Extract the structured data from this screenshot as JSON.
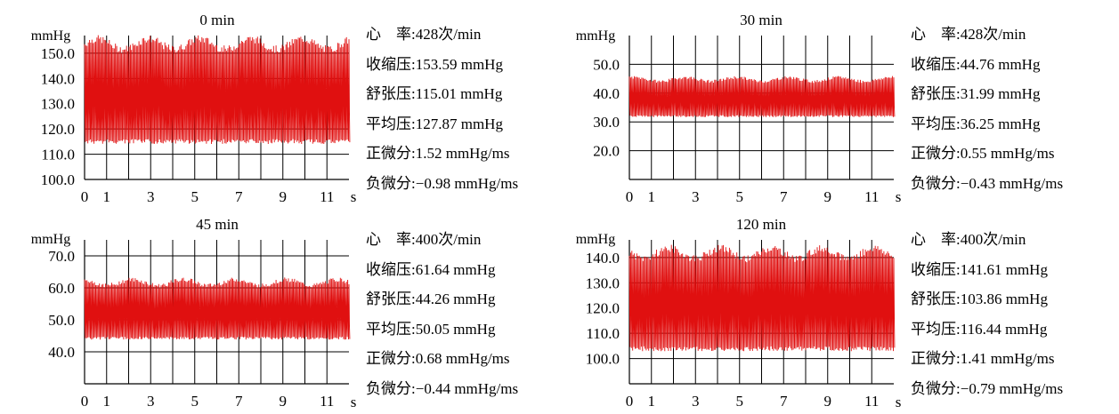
{
  "chart_data": [
    {
      "type": "line",
      "title": "0 min",
      "ylabel": "mmHg",
      "xlabel": "s",
      "yticks": [
        "100.0",
        "110.0",
        "120.0",
        "130.0",
        "140.0",
        "150.0"
      ],
      "ytick_values": [
        100,
        110,
        120,
        130,
        140,
        150
      ],
      "ylim": [
        100,
        157
      ],
      "xticks": [
        "0",
        "1",
        "3",
        "5",
        "7",
        "9",
        "11"
      ],
      "xtick_values": [
        0,
        1,
        3,
        5,
        7,
        9,
        11
      ],
      "xlim": [
        0,
        12
      ],
      "grid": true,
      "series": [
        {
          "systolic": 153.59,
          "diastolic": 115.01,
          "mean": 127.87,
          "heart_rate": 428,
          "color": "#e01010"
        }
      ],
      "stats": [
        {
          "label": "心　率:",
          "value": "428次/min"
        },
        {
          "label": "收缩压:",
          "value": "153.59 mmHg"
        },
        {
          "label": "舒张压:",
          "value": "115.01 mmHg"
        },
        {
          "label": "平均压:",
          "value": "127.87 mmHg"
        },
        {
          "label": "正微分:",
          "value": "1.52 mmHg/ms"
        },
        {
          "label": "负微分:",
          "value": "−0.98 mmHg/ms"
        }
      ]
    },
    {
      "type": "line",
      "title": "30 min",
      "ylabel": "mmHg",
      "xlabel": "s",
      "yticks": [
        "20.0",
        "30.0",
        "40.0",
        "50.0"
      ],
      "ytick_values": [
        20,
        30,
        40,
        50
      ],
      "ylim": [
        10,
        60
      ],
      "xticks": [
        "0",
        "1",
        "3",
        "5",
        "7",
        "9",
        "11"
      ],
      "xtick_values": [
        0,
        1,
        3,
        5,
        7,
        9,
        11
      ],
      "xlim": [
        0,
        12
      ],
      "grid": true,
      "series": [
        {
          "systolic": 44.76,
          "diastolic": 31.99,
          "mean": 36.25,
          "heart_rate": 428,
          "color": "#e01010"
        }
      ],
      "stats": [
        {
          "label": "心　率:",
          "value": "428次/min"
        },
        {
          "label": "收缩压:",
          "value": "44.76 mmHg"
        },
        {
          "label": "舒张压:",
          "value": "31.99 mmHg"
        },
        {
          "label": "平均压:",
          "value": "36.25 mmHg"
        },
        {
          "label": "正微分:",
          "value": "0.55 mmHg/ms"
        },
        {
          "label": "负微分:",
          "value": "−0.43 mmHg/ms"
        }
      ]
    },
    {
      "type": "line",
      "title": "45 min",
      "ylabel": "mmHg",
      "xlabel": "s",
      "yticks": [
        "40.0",
        "50.0",
        "60.0",
        "70.0"
      ],
      "ytick_values": [
        40,
        50,
        60,
        70
      ],
      "ylim": [
        30,
        75
      ],
      "xticks": [
        "0",
        "1",
        "3",
        "5",
        "7",
        "9",
        "11"
      ],
      "xtick_values": [
        0,
        1,
        3,
        5,
        7,
        9,
        11
      ],
      "xlim": [
        0,
        12
      ],
      "grid": true,
      "series": [
        {
          "systolic": 61.64,
          "diastolic": 44.26,
          "mean": 50.05,
          "heart_rate": 400,
          "color": "#e01010"
        }
      ],
      "stats": [
        {
          "label": "心　率:",
          "value": "400次/min"
        },
        {
          "label": "收缩压:",
          "value": "61.64 mmHg"
        },
        {
          "label": "舒张压:",
          "value": "44.26 mmHg"
        },
        {
          "label": "平均压:",
          "value": "50.05 mmHg"
        },
        {
          "label": "正微分:",
          "value": "0.68 mmHg/ms"
        },
        {
          "label": "负微分:",
          "value": "−0.44 mmHg/ms"
        }
      ]
    },
    {
      "type": "line",
      "title": "120 min",
      "ylabel": "mmHg",
      "xlabel": "s",
      "yticks": [
        "100.0",
        "110.0",
        "120.0",
        "130.0",
        "140.0"
      ],
      "ytick_values": [
        100,
        110,
        120,
        130,
        140
      ],
      "ylim": [
        90,
        147
      ],
      "xticks": [
        "0",
        "1",
        "3",
        "5",
        "7",
        "9",
        "11"
      ],
      "xtick_values": [
        0,
        1,
        3,
        5,
        7,
        9,
        11
      ],
      "xlim": [
        0,
        12
      ],
      "grid": true,
      "series": [
        {
          "systolic": 141.61,
          "diastolic": 103.86,
          "mean": 116.44,
          "heart_rate": 400,
          "color": "#e01010"
        }
      ],
      "stats": [
        {
          "label": "心　率:",
          "value": "400次/min"
        },
        {
          "label": "收缩压:",
          "value": "141.61 mmHg"
        },
        {
          "label": "舒张压:",
          "value": "103.86 mmHg"
        },
        {
          "label": "平均压:",
          "value": "116.44 mmHg"
        },
        {
          "label": "正微分:",
          "value": "1.41 mmHg/ms"
        },
        {
          "label": "负微分:",
          "value": "−0.79 mmHg/ms"
        }
      ]
    }
  ]
}
